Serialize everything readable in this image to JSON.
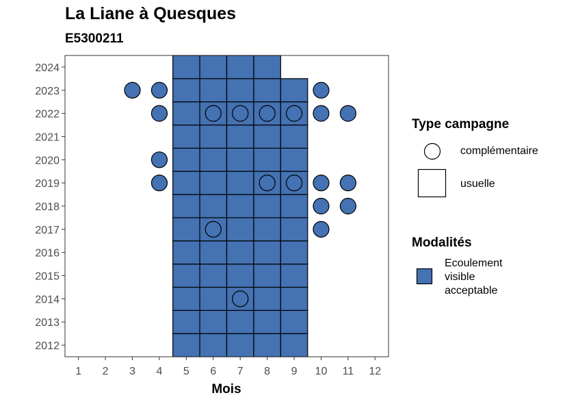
{
  "chart_data": {
    "type": "heatmap",
    "title": "La Liane à Quesques",
    "subtitle": "E5300211",
    "xlabel": "Mois",
    "ylabel": "",
    "x_ticks": [
      1,
      2,
      3,
      4,
      5,
      6,
      7,
      8,
      9,
      10,
      11,
      12
    ],
    "y_ticks": [
      2012,
      2013,
      2014,
      2015,
      2016,
      2017,
      2018,
      2019,
      2020,
      2021,
      2022,
      2023,
      2024
    ],
    "xlim": [
      0.5,
      12.5
    ],
    "ylim": [
      2011.5,
      2024.5
    ],
    "grid": false,
    "fill_color": "#4472B2",
    "usuelle": {
      "2012": [
        5,
        6,
        7,
        8,
        9
      ],
      "2013": [
        5,
        6,
        7,
        8,
        9
      ],
      "2014": [
        5,
        6,
        7,
        8,
        9
      ],
      "2015": [
        5,
        6,
        7,
        8,
        9
      ],
      "2016": [
        5,
        6,
        7,
        8,
        9
      ],
      "2017": [
        5,
        6,
        7,
        8,
        9
      ],
      "2018": [
        5,
        6,
        7,
        8,
        9
      ],
      "2019": [
        5,
        6,
        7,
        8,
        9
      ],
      "2020": [
        5,
        6,
        7,
        8,
        9
      ],
      "2021": [
        5,
        6,
        7,
        8,
        9
      ],
      "2022": [
        5,
        6,
        7,
        8,
        9
      ],
      "2023": [
        5,
        6,
        7,
        8,
        9
      ],
      "2024": [
        5,
        6,
        7,
        8
      ]
    },
    "complementaire": [
      {
        "year": 2023,
        "months": [
          3,
          4,
          10
        ]
      },
      {
        "year": 2022,
        "months": [
          4,
          6,
          7,
          8,
          9,
          10,
          11
        ]
      },
      {
        "year": 2020,
        "months": [
          4
        ]
      },
      {
        "year": 2019,
        "months": [
          4,
          8,
          9,
          10,
          11
        ]
      },
      {
        "year": 2018,
        "months": [
          10,
          11
        ]
      },
      {
        "year": 2017,
        "months": [
          6,
          10
        ]
      },
      {
        "year": 2014,
        "months": [
          7
        ]
      }
    ],
    "legend": {
      "type_title": "Type campagne",
      "type_items": [
        "complémentaire",
        "usuelle"
      ],
      "mod_title": "Modalités",
      "mod_items": [
        "Ecoulement visible acceptable"
      ],
      "placement": "right"
    }
  }
}
